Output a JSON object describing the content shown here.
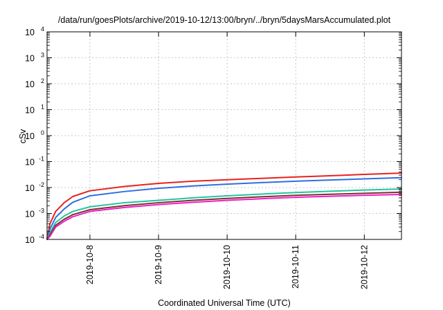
{
  "chart_data": {
    "type": "line",
    "title": "/data/run/goesPlots/archive/2019-10-12/13:00/bryn/../bryn/5daysMarsAccumulated.plot",
    "xlabel": "Coordinated Universal Time (UTC)",
    "ylabel": "cSv",
    "x_type": "date",
    "xlim": [
      "2019-10-07T09:00",
      "2019-10-12T13:00"
    ],
    "x_ticks": [
      "2019-10-8",
      "2019-10-9",
      "2019-10-10",
      "2019-10-11",
      "2019-10-12"
    ],
    "y_scale": "log",
    "ylim": [
      0.0001,
      10000
    ],
    "y_ticks": [
      {
        "base": "10",
        "exp": "-4"
      },
      {
        "base": "10",
        "exp": "-3"
      },
      {
        "base": "10",
        "exp": "-2"
      },
      {
        "base": "10",
        "exp": "-1"
      },
      {
        "base": "10",
        "exp": "0"
      },
      {
        "base": "10",
        "exp": "1"
      },
      {
        "base": "10",
        "exp": "2"
      },
      {
        "base": "10",
        "exp": "3"
      },
      {
        "base": "10",
        "exp": "4"
      }
    ],
    "grid": true,
    "x": [
      "2019-10-07T09:00",
      "2019-10-07T10:00",
      "2019-10-07T12:00",
      "2019-10-07T15:00",
      "2019-10-07T18:00",
      "2019-10-08T00:00",
      "2019-10-08T12:00",
      "2019-10-09T00:00",
      "2019-10-09T12:00",
      "2019-10-10T00:00",
      "2019-10-10T12:00",
      "2019-10-11T00:00",
      "2019-10-11T12:00",
      "2019-10-12T00:00",
      "2019-10-12T13:00"
    ],
    "series": [
      {
        "color": "#e8211f",
        "values": [
          0.00011,
          0.0004,
          0.0012,
          0.0026,
          0.0045,
          0.0075,
          0.011,
          0.0145,
          0.0175,
          0.02,
          0.0225,
          0.0255,
          0.0285,
          0.032,
          0.036
        ]
      },
      {
        "color": "#2e6fe0",
        "values": [
          0.0001,
          0.00025,
          0.0007,
          0.0015,
          0.0027,
          0.0048,
          0.007,
          0.0093,
          0.0115,
          0.0135,
          0.0155,
          0.0175,
          0.0195,
          0.0215,
          0.024
        ]
      },
      {
        "color": "#20c4a0",
        "values": [
          0.0001,
          0.00018,
          0.00045,
          0.0008,
          0.0012,
          0.0018,
          0.0026,
          0.0032,
          0.004,
          0.0048,
          0.0056,
          0.0064,
          0.0072,
          0.008,
          0.0088
        ]
      },
      {
        "color": "#7a3030",
        "values": [
          0.0001,
          0.00015,
          0.00035,
          0.0006,
          0.0009,
          0.0014,
          0.002,
          0.0026,
          0.0032,
          0.0038,
          0.0044,
          0.005,
          0.0055,
          0.006,
          0.0066
        ]
      },
      {
        "color": "#ec1fc5",
        "values": [
          0.0001,
          0.00013,
          0.0003,
          0.0005,
          0.00075,
          0.0012,
          0.0017,
          0.0022,
          0.0027,
          0.0032,
          0.0037,
          0.0042,
          0.0046,
          0.005,
          0.0054
        ]
      }
    ]
  }
}
